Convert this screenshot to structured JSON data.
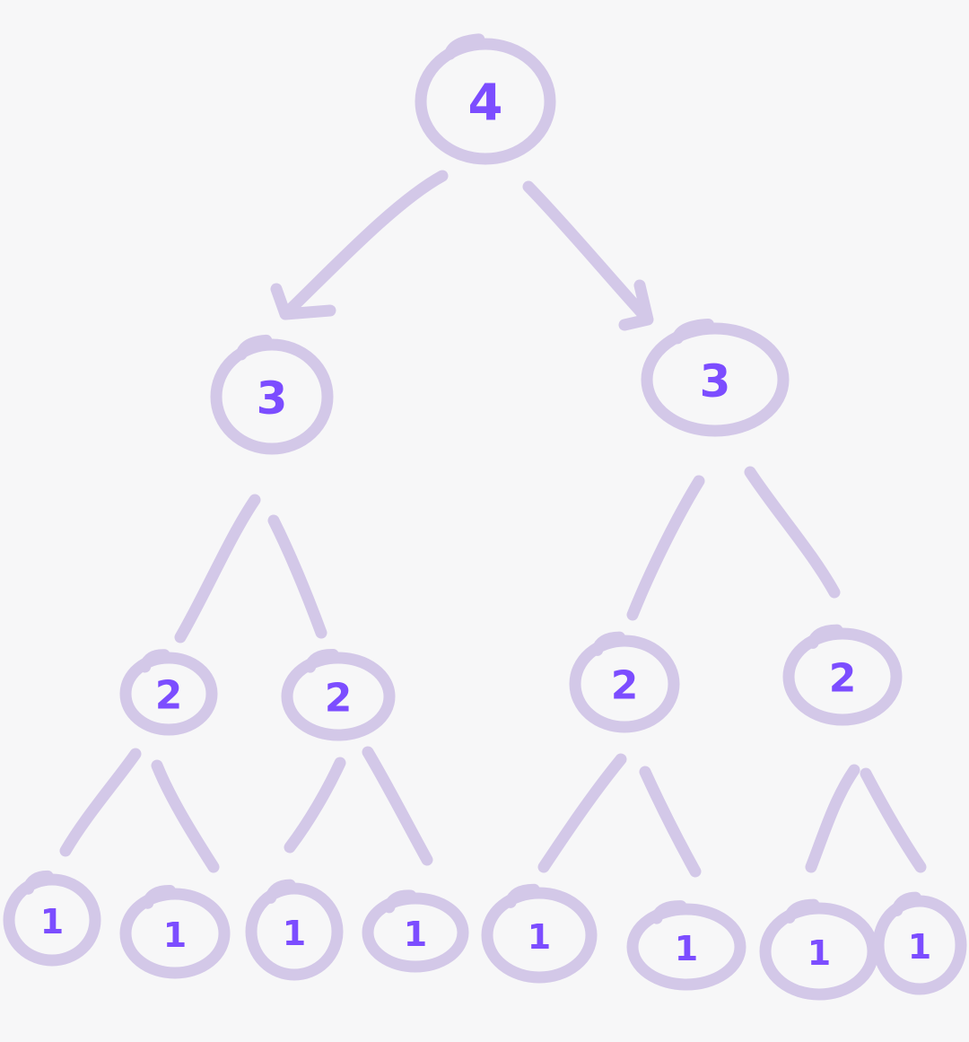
{
  "diagram": {
    "colors": {
      "background": "#f7f7f8",
      "stroke": "#d3c8e8",
      "label": "#7c4dff"
    },
    "root": {
      "label": "4",
      "children": [
        {
          "label": "3",
          "children": [
            {
              "label": "2",
              "children": [
                {
                  "label": "1"
                },
                {
                  "label": "1"
                }
              ]
            },
            {
              "label": "2",
              "children": [
                {
                  "label": "1"
                },
                {
                  "label": "1"
                }
              ]
            }
          ]
        },
        {
          "label": "3",
          "children": [
            {
              "label": "2",
              "children": [
                {
                  "label": "1"
                },
                {
                  "label": "1"
                }
              ]
            },
            {
              "label": "2",
              "children": [
                {
                  "label": "1"
                },
                {
                  "label": "1"
                }
              ]
            }
          ]
        }
      ]
    },
    "edges_with_arrowheads": [
      "4-3a",
      "4-3b"
    ]
  }
}
